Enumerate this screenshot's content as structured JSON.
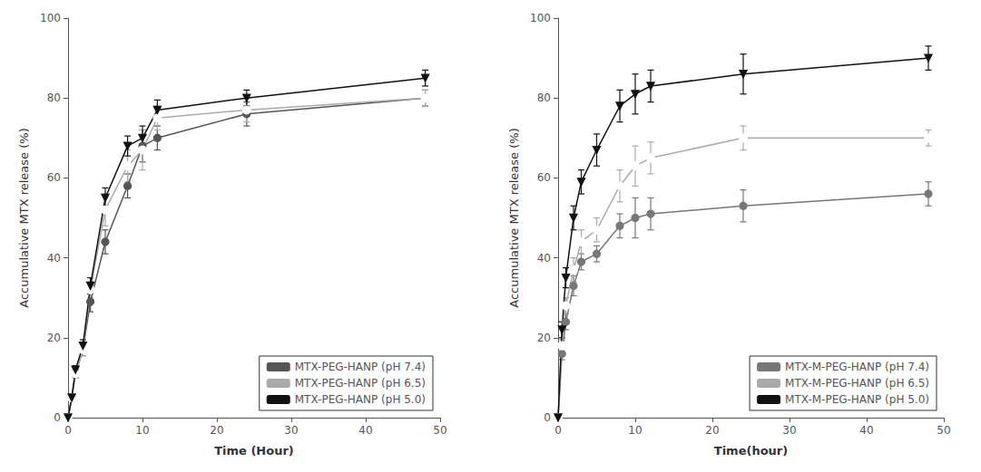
{
  "chart_data": [
    {
      "type": "line",
      "xlabel": "Time (Hour)",
      "ylabel": "Accumulative MTX release (%)",
      "xlim": [
        0,
        50
      ],
      "ylim": [
        0,
        100
      ],
      "xticks": [
        0,
        10,
        20,
        30,
        40,
        50
      ],
      "yticks": [
        0,
        20,
        40,
        60,
        80,
        100
      ],
      "grid": false,
      "legend": "lower right",
      "series": [
        {
          "name": "MTX-PEG-HANP (pH 7.4)",
          "color": "#555555",
          "marker": "circle",
          "x": [
            0,
            0.5,
            1,
            2,
            3,
            5,
            8,
            10,
            12,
            24,
            48
          ],
          "values": [
            0,
            5,
            11,
            17,
            29,
            44,
            58,
            68,
            70,
            76,
            80
          ],
          "yerr": [
            0,
            0.5,
            1,
            1.5,
            2.5,
            3,
            3,
            4,
            3,
            3,
            2
          ]
        },
        {
          "name": "MTX-PEG-HANP (pH 6.5)",
          "color": "#aaaaaa",
          "marker": "open_circle",
          "x": [
            0,
            0.5,
            1,
            2,
            3,
            5,
            8,
            10,
            12,
            24,
            48
          ],
          "values": [
            0,
            5,
            11,
            17,
            32,
            52,
            63,
            67,
            75,
            77,
            80
          ],
          "yerr": [
            0,
            0.5,
            1,
            1.5,
            2,
            4,
            4,
            5,
            3,
            3,
            2
          ]
        },
        {
          "name": "MTX-PEG-HANP (pH 5.0)",
          "color": "#111111",
          "marker": "triangle_down",
          "x": [
            0,
            0.5,
            1,
            2,
            3,
            5,
            8,
            10,
            12,
            24,
            48
          ],
          "values": [
            0,
            5,
            12,
            18,
            33,
            55,
            68,
            70,
            77,
            80,
            85
          ],
          "yerr": [
            0,
            0.5,
            1,
            1.5,
            2,
            2.5,
            2.5,
            3,
            2.5,
            2,
            2
          ]
        }
      ]
    },
    {
      "type": "line",
      "xlabel": "Time(hour)",
      "ylabel": "Accumulative MTX release (%)",
      "xlim": [
        0,
        50
      ],
      "ylim": [
        0,
        100
      ],
      "xticks": [
        0,
        10,
        20,
        30,
        40,
        50
      ],
      "yticks": [
        0,
        20,
        40,
        60,
        80,
        100
      ],
      "grid": false,
      "legend": "lower right",
      "series": [
        {
          "name": "MTX-M-PEG-HANP (pH 7.4)",
          "color": "#777777",
          "marker": "circle",
          "x": [
            0,
            0.5,
            1,
            2,
            3,
            5,
            8,
            10,
            12,
            24,
            48
          ],
          "values": [
            0,
            16,
            24,
            33,
            39,
            41,
            48,
            50,
            51,
            53,
            56
          ],
          "yerr": [
            0,
            1.5,
            2,
            2.5,
            2,
            2,
            3,
            5,
            4,
            4,
            3
          ]
        },
        {
          "name": "MTX-M-PEG-HANP (pH 6.5)",
          "color": "#aaaaaa",
          "marker": "open_circle",
          "x": [
            0,
            0.5,
            1,
            2,
            3,
            5,
            8,
            10,
            12,
            24,
            48
          ],
          "values": [
            0,
            18,
            28,
            37,
            44,
            47,
            58,
            63,
            65,
            70,
            70
          ],
          "yerr": [
            0,
            1.5,
            2,
            3,
            3,
            3,
            4,
            5,
            4,
            3,
            2
          ]
        },
        {
          "name": "MTX-M-PEG-HANP (pH 5.0)",
          "color": "#111111",
          "marker": "triangle_down",
          "x": [
            0,
            0.5,
            1,
            2,
            3,
            5,
            8,
            10,
            12,
            24,
            48
          ],
          "values": [
            0,
            22,
            35,
            50,
            59,
            67,
            78,
            81,
            83,
            86,
            90
          ],
          "yerr": [
            0,
            2,
            2.5,
            3,
            3,
            4,
            4,
            5,
            4,
            5,
            3
          ]
        }
      ]
    }
  ]
}
